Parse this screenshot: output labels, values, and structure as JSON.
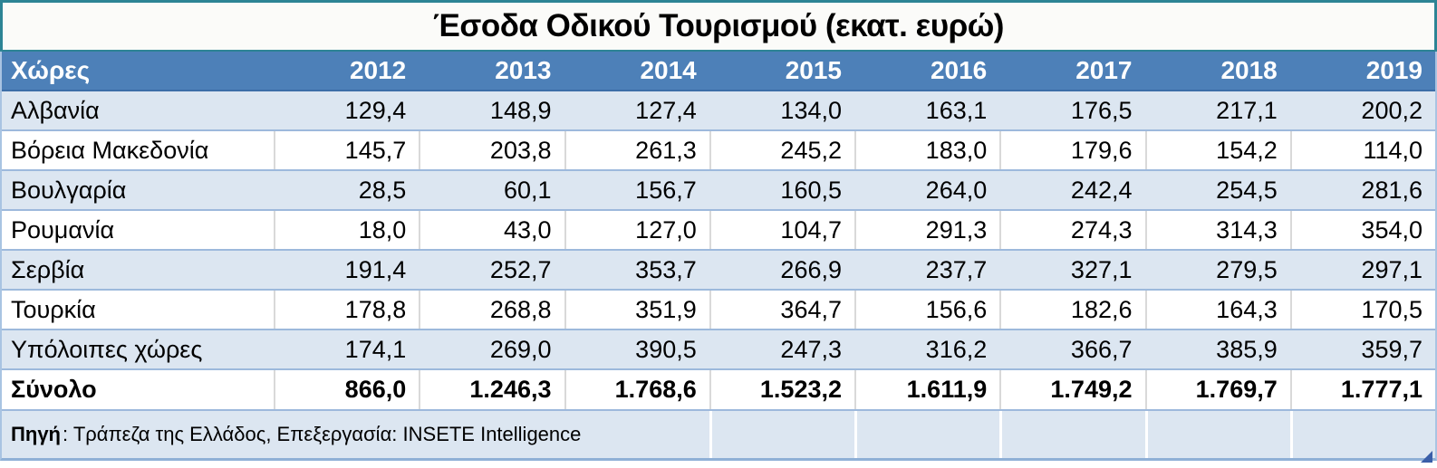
{
  "title": "Έσοδα Οδικού Τουρισμού (εκατ. ευρώ)",
  "table": {
    "header": [
      "Χώρες",
      "2012",
      "2013",
      "2014",
      "2015",
      "2016",
      "2017",
      "2018",
      "2019"
    ],
    "rows": [
      {
        "country": "Αλβανία",
        "values": [
          "129,4",
          "148,9",
          "127,4",
          "134,0",
          "163,1",
          "176,5",
          "217,1",
          "200,2"
        ]
      },
      {
        "country": "Βόρεια Μακεδονία",
        "values": [
          "145,7",
          "203,8",
          "261,3",
          "245,2",
          "183,0",
          "179,6",
          "154,2",
          "114,0"
        ]
      },
      {
        "country": "Βουλγαρία",
        "values": [
          "28,5",
          "60,1",
          "156,7",
          "160,5",
          "264,0",
          "242,4",
          "254,5",
          "281,6"
        ]
      },
      {
        "country": "Ρουμανία",
        "values": [
          "18,0",
          "43,0",
          "127,0",
          "104,7",
          "291,3",
          "274,3",
          "314,3",
          "354,0"
        ]
      },
      {
        "country": "Σερβία",
        "values": [
          "191,4",
          "252,7",
          "353,7",
          "266,9",
          "237,7",
          "327,1",
          "279,5",
          "297,1"
        ]
      },
      {
        "country": "Τουρκία",
        "values": [
          "178,8",
          "268,8",
          "351,9",
          "364,7",
          "156,6",
          "182,6",
          "164,3",
          "170,5"
        ]
      },
      {
        "country": "Υπόλοιπες χώρες",
        "values": [
          "174,1",
          "269,0",
          "390,5",
          "247,3",
          "316,2",
          "366,7",
          "385,9",
          "359,7"
        ]
      }
    ],
    "total": {
      "label": "Σύνολο",
      "values": [
        "866,0",
        "1.246,3",
        "1.768,6",
        "1.523,2",
        "1.611,9",
        "1.749,2",
        "1.769,7",
        "1.777,1"
      ]
    }
  },
  "footer": {
    "source_label": "Πηγή",
    "source_text": ": Τράπεζα της Ελλάδος, Επεξεργασία: INSETE Intelligence"
  },
  "colors": {
    "header_bg": "#4d80b8",
    "header_text": "#ffffff",
    "row_alt_bg": "#dce6f1",
    "row_plain_bg": "#ffffff",
    "row_border": "#9db9dc",
    "divider_gray": "#d9d9d9",
    "title_border_teal": "#2d8495",
    "outer_bottom_border": "#8fb0d6",
    "resize_handle": "#3a5ea8"
  },
  "chart_data": {
    "type": "table",
    "title": "Έσοδα Οδικού Τουρισμού (εκατ. ευρώ)",
    "unit": "εκατ. ευρώ",
    "categories": [
      "2012",
      "2013",
      "2014",
      "2015",
      "2016",
      "2017",
      "2018",
      "2019"
    ],
    "series": [
      {
        "name": "Αλβανία",
        "values": [
          129.4,
          148.9,
          127.4,
          134.0,
          163.1,
          176.5,
          217.1,
          200.2
        ]
      },
      {
        "name": "Βόρεια Μακεδονία",
        "values": [
          145.7,
          203.8,
          261.3,
          245.2,
          183.0,
          179.6,
          154.2,
          114.0
        ]
      },
      {
        "name": "Βουλγαρία",
        "values": [
          28.5,
          60.1,
          156.7,
          160.5,
          264.0,
          242.4,
          254.5,
          281.6
        ]
      },
      {
        "name": "Ρουμανία",
        "values": [
          18.0,
          43.0,
          127.0,
          104.7,
          291.3,
          274.3,
          314.3,
          354.0
        ]
      },
      {
        "name": "Σερβία",
        "values": [
          191.4,
          252.7,
          353.7,
          266.9,
          237.7,
          327.1,
          279.5,
          297.1
        ]
      },
      {
        "name": "Τουρκία",
        "values": [
          178.8,
          268.8,
          351.9,
          364.7,
          156.6,
          182.6,
          164.3,
          170.5
        ]
      },
      {
        "name": "Υπόλοιπες χώρες",
        "values": [
          174.1,
          269.0,
          390.5,
          247.3,
          316.2,
          366.7,
          385.9,
          359.7
        ]
      },
      {
        "name": "Σύνολο",
        "values": [
          866.0,
          1246.3,
          1768.6,
          1523.2,
          1611.9,
          1749.2,
          1769.7,
          1777.1
        ]
      }
    ],
    "source": "Πηγή: Τράπεζα της Ελλάδος, Επεξεργασία: INSETE Intelligence",
    "legend_position": "none",
    "grid": true
  }
}
